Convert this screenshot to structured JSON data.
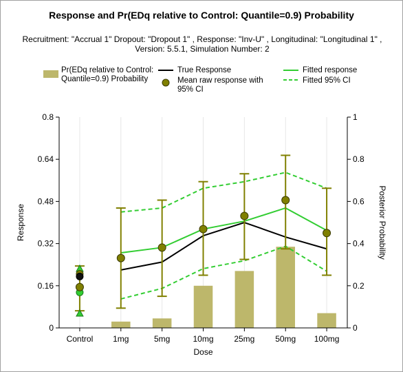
{
  "title": "Response and Pr(EDq relative to Control: Quantile=0.9) Probability",
  "subtitle": "Recruitment: \"Accrual 1\" Dropout: \"Dropout 1\" , Response: \"Inv-U\" , Longitudinal: \"Longitudinal 1\" , Version: 5.5.1, Simulation Number: 2",
  "legend": {
    "bar_label": "Pr(EDq relative to Control: Quantile=0.9) Probability",
    "true_label": "True Response",
    "mean_label": "Mean raw response with 95% CI",
    "fitted_label": "Fitted response",
    "fitted_ci_label": "Fitted 95% CI"
  },
  "colors": {
    "bar": "#bdb76b",
    "true": "#000000",
    "fitted": "#32cd32",
    "marker": "#808000",
    "errorbar": "#808000",
    "control_green": "#32cd32"
  },
  "chart_data": {
    "type": "bar+line",
    "xlabel": "Dose",
    "ylabel": "Response",
    "y2label": "Posterior Probability",
    "categories": [
      "Control",
      "1mg",
      "5mg",
      "10mg",
      "25mg",
      "50mg",
      "100mg"
    ],
    "ylim": [
      0,
      0.8
    ],
    "yticks": [
      "0",
      "0.16",
      "0.32",
      "0.48",
      "0.64",
      "0.8"
    ],
    "yticks_values": [
      0,
      0.16,
      0.32,
      0.48,
      0.64,
      0.8
    ],
    "y2lim": [
      0,
      1
    ],
    "y2ticks": [
      "0",
      "0.2",
      "0.4",
      "0.6",
      "0.8",
      "1"
    ],
    "y2ticks_values": [
      0,
      0.2,
      0.4,
      0.6,
      0.8,
      1
    ],
    "grid": "vertical",
    "legend_position": "top",
    "bar_probability": [
      null,
      0.03,
      0.045,
      0.2,
      0.27,
      0.385,
      0.07
    ],
    "true_response": [
      null,
      0.22,
      0.25,
      0.35,
      0.4,
      0.345,
      0.3
    ],
    "fitted_response": [
      null,
      0.285,
      0.305,
      0.375,
      0.405,
      0.455,
      0.37
    ],
    "fitted_ci_lower": [
      null,
      0.11,
      0.15,
      0.225,
      0.255,
      0.31,
      0.215
    ],
    "fitted_ci_upper": [
      null,
      0.44,
      0.455,
      0.53,
      0.555,
      0.59,
      0.53
    ],
    "mean_response": [
      0.155,
      0.265,
      0.305,
      0.375,
      0.425,
      0.485,
      0.36
    ],
    "mean_ci_lower": [
      0.065,
      0.075,
      0.12,
      0.2,
      0.26,
      0.3,
      0.2
    ],
    "mean_ci_upper": [
      0.235,
      0.455,
      0.485,
      0.555,
      0.585,
      0.655,
      0.53
    ],
    "control_points": {
      "true_response": 0.195,
      "mean_response_extra": 0.205,
      "fitted_response": 0.135,
      "fitted_ci_lower": 0.055,
      "fitted_ci_upper": 0.225
    }
  }
}
